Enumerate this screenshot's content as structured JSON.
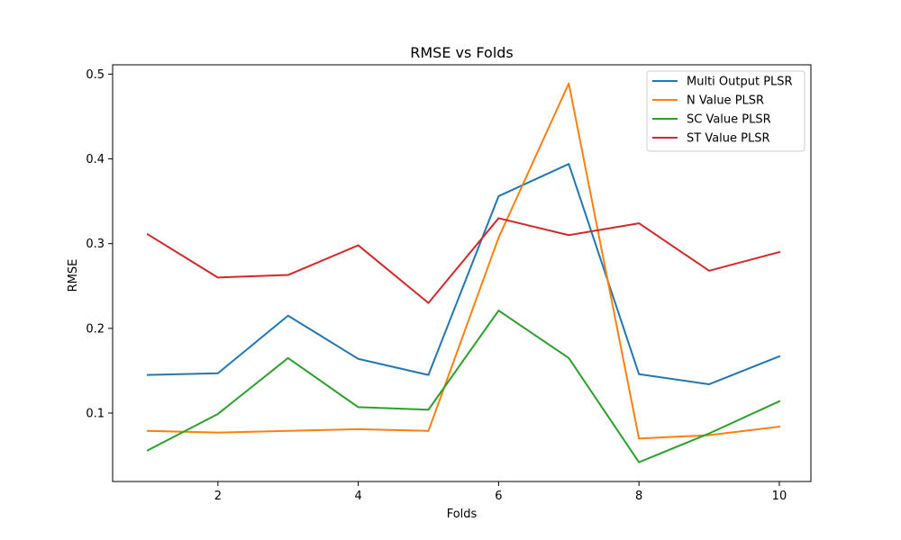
{
  "chart_data": {
    "type": "line",
    "title": "RMSE vs Folds",
    "xlabel": "Folds",
    "ylabel": "RMSE",
    "x": [
      1,
      2,
      3,
      4,
      5,
      6,
      7,
      8,
      9,
      10
    ],
    "xlim": [
      0.5,
      10.45
    ],
    "ylim": [
      0.0193,
      0.511
    ],
    "xticks": [
      2,
      4,
      6,
      8,
      10
    ],
    "yticks": [
      0.1,
      0.2,
      0.3,
      0.4,
      0.5
    ],
    "xtick_labels": [
      "2",
      "4",
      "6",
      "8",
      "10"
    ],
    "ytick_labels": [
      "0.1",
      "0.2",
      "0.3",
      "0.4",
      "0.5"
    ],
    "grid": false,
    "legend_position": "top-right",
    "series": [
      {
        "name": "Multi Output PLSR",
        "color": "#1f77b4",
        "values": [
          0.145,
          0.147,
          0.215,
          0.164,
          0.145,
          0.356,
          0.394,
          0.146,
          0.134,
          0.167
        ]
      },
      {
        "name": "N Value PLSR",
        "color": "#ff7f0e",
        "values": [
          0.079,
          0.077,
          0.079,
          0.081,
          0.079,
          0.307,
          0.489,
          0.07,
          0.074,
          0.084
        ]
      },
      {
        "name": "SC Value PLSR",
        "color": "#2ca02c",
        "values": [
          0.056,
          0.099,
          0.165,
          0.107,
          0.104,
          0.221,
          0.165,
          0.042,
          0.076,
          0.114
        ]
      },
      {
        "name": "ST Value PLSR",
        "color": "#d62728",
        "values": [
          0.311,
          0.26,
          0.263,
          0.298,
          0.23,
          0.33,
          0.31,
          0.324,
          0.268,
          0.29
        ]
      }
    ]
  }
}
